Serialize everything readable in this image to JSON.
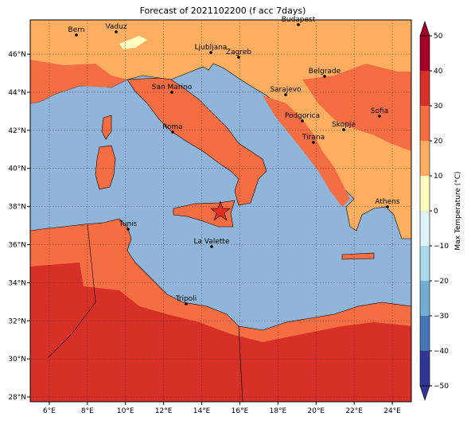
{
  "title": "Forecast of 2021102200 (f acc 7days)",
  "xticks": [
    {
      "value": 6,
      "label": "6°E"
    },
    {
      "value": 8,
      "label": "8°E"
    },
    {
      "value": 10,
      "label": "10°E"
    },
    {
      "value": 12,
      "label": "12°E"
    },
    {
      "value": 14,
      "label": "14°E"
    },
    {
      "value": 16,
      "label": "16°E"
    },
    {
      "value": 18,
      "label": "18°E"
    },
    {
      "value": 20,
      "label": "20°E"
    },
    {
      "value": 22,
      "label": "22°E"
    },
    {
      "value": 24,
      "label": "24°E"
    }
  ],
  "yticks": [
    {
      "value": 28,
      "label": "28°N"
    },
    {
      "value": 30,
      "label": "30°N"
    },
    {
      "value": 32,
      "label": "32°N"
    },
    {
      "value": 34,
      "label": "34°N"
    },
    {
      "value": 36,
      "label": "36°N"
    },
    {
      "value": 38,
      "label": "38°N"
    },
    {
      "value": 40,
      "label": "40°N"
    },
    {
      "value": 42,
      "label": "42°N"
    },
    {
      "value": 44,
      "label": "44°N"
    },
    {
      "value": 46,
      "label": "46°N"
    }
  ],
  "cities": [
    "Bern",
    "Vaduz",
    "Budapest",
    "Ljubljana",
    "Zagreb",
    "San Marino",
    "Belgrade",
    "Sarajevo",
    "Sofia",
    "Podgorica",
    "Skopje",
    "Roma",
    "Tirana",
    "Athens",
    "Tunis",
    "La Valette",
    "Tripoli"
  ],
  "colorbar": {
    "label": "Max Temperature (°C)",
    "lim": [
      -50,
      50
    ],
    "ticks": [
      {
        "value": -50,
        "label": "−50"
      },
      {
        "value": -40,
        "label": "−40"
      },
      {
        "value": -30,
        "label": "−30"
      },
      {
        "value": -20,
        "label": "−20"
      },
      {
        "value": -10,
        "label": "−10"
      },
      0,
      10,
      20,
      30,
      40,
      50
    ],
    "colors": [
      "#313695",
      "#4575b4",
      "#74add1",
      "#abd9e9",
      "#e0f3f8",
      "#ffffbf",
      "#fdae61",
      "#f46d43",
      "#d73027",
      "#a50026"
    ]
  }
}
